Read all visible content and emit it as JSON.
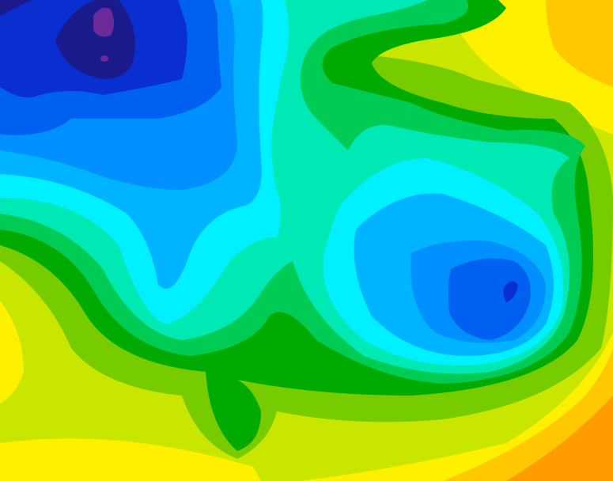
{
  "map": {
    "type": "filled-contour-field",
    "palette": {
      "purple": "#6a2a9a",
      "navy": "#1a1a8c",
      "dark_blue": "#0a2fd0",
      "blue": "#0060f0",
      "mid_blue": "#0090ff",
      "light_blue": "#00b4ff",
      "cyan": "#00f0ff",
      "aquamarine": "#00e8b4",
      "green": "#00cc55",
      "dark_green": "#00aa00",
      "lime": "#77cc00",
      "yellow_green": "#c8e600",
      "yellow": "#fff000",
      "gold": "#ffc800",
      "orange": "#ff9c00"
    }
  }
}
